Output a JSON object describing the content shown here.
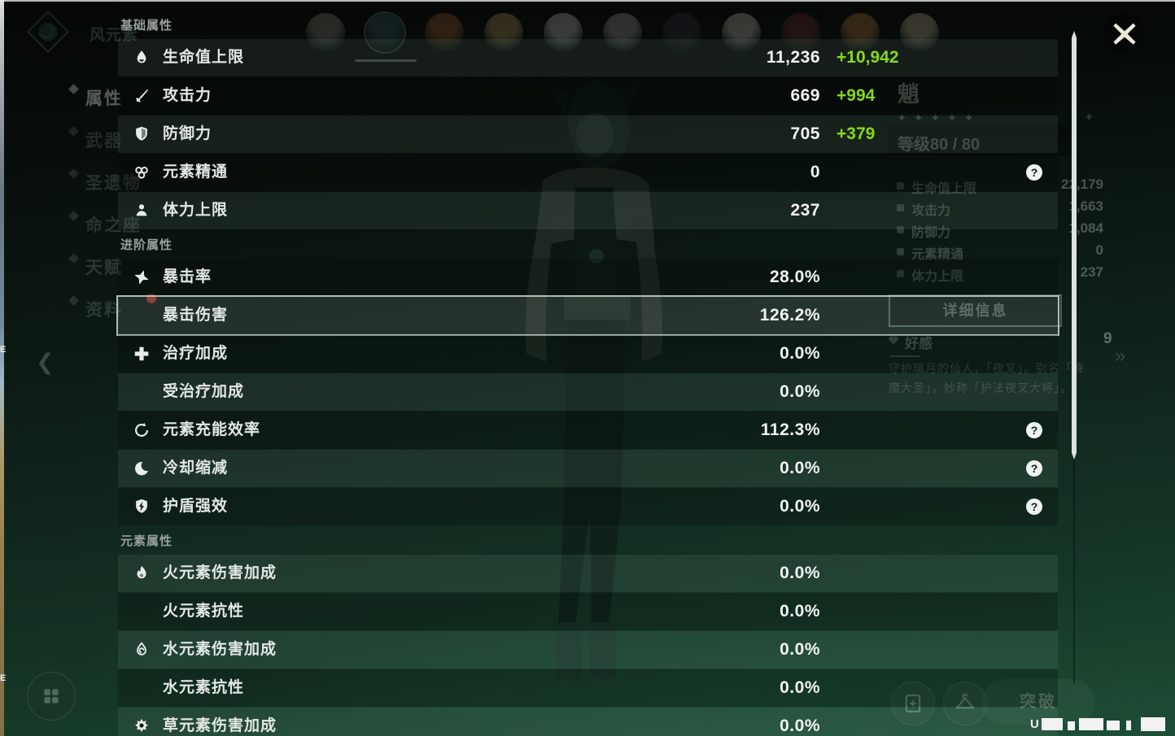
{
  "colors": {
    "bonus_green": "#86D91A",
    "highlight_border": "rgba(206,216,211,0.85)",
    "scrollbar": "#DCE2DE",
    "close_icon": "#EFE8D8",
    "badge_red": "#C23B30"
  },
  "overlay": {
    "sections": [
      {
        "title": "基础属性",
        "rows": [
          {
            "icon": "hp-icon",
            "label": "生命值上限",
            "value": "11,236",
            "bonus": "+10,942"
          },
          {
            "icon": "atk-icon",
            "label": "攻击力",
            "value": "669",
            "bonus": "+994"
          },
          {
            "icon": "def-icon",
            "label": "防御力",
            "value": "705",
            "bonus": "+379"
          },
          {
            "icon": "elemental-mastery-icon",
            "label": "元素精通",
            "value": "0",
            "help": true
          },
          {
            "icon": "stamina-icon",
            "label": "体力上限",
            "value": "237"
          }
        ]
      },
      {
        "title": "进阶属性",
        "rows": [
          {
            "icon": "crit-rate-icon",
            "label": "暴击率",
            "value": "28.0%"
          },
          {
            "label": "暴击伤害",
            "value": "126.2%",
            "highlight": true
          },
          {
            "icon": "healing-bonus-icon",
            "label": "治疗加成",
            "value": "0.0%"
          },
          {
            "label": "受治疗加成",
            "value": "0.0%"
          },
          {
            "icon": "energy-recharge-icon",
            "label": "元素充能效率",
            "value": "112.3%",
            "help": true
          },
          {
            "icon": "cooldown-icon",
            "label": "冷却缩减",
            "value": "0.0%",
            "help": true
          },
          {
            "icon": "shield-strength-icon",
            "label": "护盾强效",
            "value": "0.0%",
            "help": true
          }
        ]
      },
      {
        "title": "元素属性",
        "rows": [
          {
            "icon": "pyro-icon",
            "label": "火元素伤害加成",
            "value": "0.0%"
          },
          {
            "label": "火元素抗性",
            "value": "0.0%"
          },
          {
            "icon": "hydro-icon",
            "label": "水元素伤害加成",
            "value": "0.0%"
          },
          {
            "label": "水元素抗性",
            "value": "0.0%"
          },
          {
            "icon": "dendro-icon",
            "label": "草元素伤害加成",
            "value": "0.0%"
          }
        ]
      }
    ]
  },
  "background": {
    "element_label": "风元素",
    "sidebar": [
      {
        "label": "属性",
        "active": true
      },
      {
        "label": "武器"
      },
      {
        "label": "圣遗物"
      },
      {
        "label": "命之座"
      },
      {
        "label": "天赋"
      },
      {
        "label": "资料",
        "badge": true
      }
    ],
    "avatars": [
      {
        "hair": "#9A9488"
      },
      {
        "hair": "#3A5A62",
        "selected": true
      },
      {
        "hair": "#B06A3A"
      },
      {
        "hair": "#C9A86A"
      },
      {
        "hair": "#D8DCD2"
      },
      {
        "hair": "#B8B5AC"
      },
      {
        "hair": "#413A4A"
      },
      {
        "hair": "#DED6CC"
      },
      {
        "hair": "#7A3A36"
      },
      {
        "hair": "#CA8B46"
      },
      {
        "hair": "#D8C9A4"
      }
    ],
    "character": {
      "name": "魈",
      "stars": 5,
      "level_label": "等级80 / 80",
      "stats": [
        [
          "生命值上限",
          "22,179"
        ],
        [
          "攻击力",
          "1,663"
        ],
        [
          "防御力",
          "1,084"
        ],
        [
          "元素精通",
          "0"
        ],
        [
          "体力上限",
          "237"
        ]
      ],
      "details_button": "详细信息",
      "friendship_label": "好感",
      "friendship_level": "9",
      "desc_line1": "守护璃月的仙人，「夜叉」。别名「降",
      "desc_line2": "魔大圣」，妙称「护法夜叉大将」。"
    },
    "ascend_button": "突破",
    "uid_fragment": "U",
    "scene_fragments": [
      "E",
      "E"
    ]
  }
}
